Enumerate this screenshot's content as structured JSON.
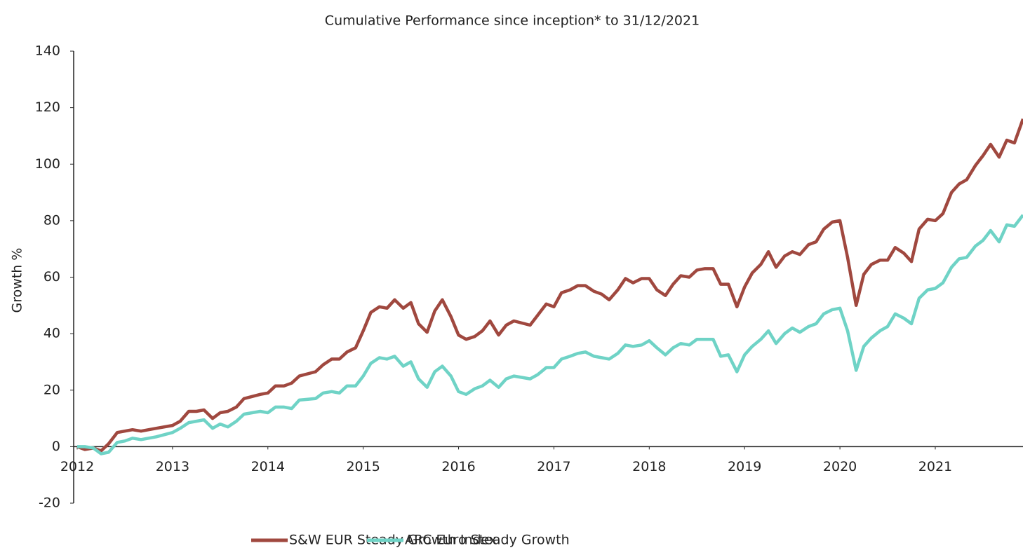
{
  "chart_data": {
    "type": "line",
    "title": "Cumulative Performance since inception* to 31/12/2021",
    "y_label": "Growth %",
    "x": [
      2012,
      2012.08,
      2012.17,
      2012.25,
      2012.33,
      2012.42,
      2012.5,
      2012.58,
      2012.67,
      2012.83,
      2013,
      2013.08,
      2013.17,
      2013.25,
      2013.33,
      2013.42,
      2013.5,
      2013.58,
      2013.67,
      2013.75,
      2013.92,
      2014,
      2014.08,
      2014.17,
      2014.25,
      2014.33,
      2014.5,
      2014.58,
      2014.67,
      2014.75,
      2014.83,
      2014.92,
      2015,
      2015.08,
      2015.17,
      2015.25,
      2015.33,
      2015.42,
      2015.5,
      2015.58,
      2015.67,
      2015.75,
      2015.83,
      2015.92,
      2016,
      2016.08,
      2016.17,
      2016.25,
      2016.33,
      2016.42,
      2016.5,
      2016.58,
      2016.75,
      2016.83,
      2016.92,
      2017,
      2017.08,
      2017.17,
      2017.25,
      2017.33,
      2017.42,
      2017.5,
      2017.58,
      2017.67,
      2017.75,
      2017.83,
      2017.92,
      2018,
      2018.08,
      2018.17,
      2018.25,
      2018.33,
      2018.42,
      2018.5,
      2018.58,
      2018.67,
      2018.75,
      2018.83,
      2018.92,
      2019,
      2019.08,
      2019.17,
      2019.25,
      2019.33,
      2019.42,
      2019.5,
      2019.58,
      2019.67,
      2019.75,
      2019.83,
      2019.92,
      2020,
      2020.08,
      2020.17,
      2020.25,
      2020.33,
      2020.42,
      2020.5,
      2020.58,
      2020.67,
      2020.75,
      2020.83,
      2020.92,
      2021,
      2021.08,
      2021.17,
      2021.25,
      2021.33,
      2021.42,
      2021.5,
      2021.58,
      2021.67,
      2021.75,
      2021.83,
      2021.92
    ],
    "series": [
      {
        "name": "S&W EUR Steady Growth Index",
        "color": "#a0483f",
        "values": [
          0,
          -1,
          -0.5,
          -1.5,
          1,
          5,
          5.5,
          6,
          5.5,
          6.5,
          7.5,
          9,
          12.5,
          12.5,
          13,
          10,
          12,
          12.5,
          14,
          17,
          18.5,
          19,
          21.5,
          21.5,
          22.5,
          25,
          26.5,
          29,
          31,
          31,
          33.5,
          35,
          41,
          47.5,
          49.5,
          49,
          52,
          49,
          51,
          43.5,
          40.5,
          48,
          52,
          46,
          39.5,
          38,
          39,
          41,
          44.5,
          39.5,
          43,
          44.5,
          43,
          46.5,
          50.5,
          49.5,
          54.5,
          55.5,
          57,
          57,
          55,
          54,
          52,
          55.5,
          59.5,
          58,
          59.5,
          59.5,
          55.5,
          53.5,
          57.5,
          60.5,
          60,
          62.5,
          63,
          63,
          57.5,
          57.5,
          49.5,
          56.5,
          61.5,
          64.5,
          69,
          63.5,
          67.5,
          69,
          68,
          71.5,
          72.5,
          77,
          79.5,
          80,
          67,
          50,
          61,
          64.5,
          66,
          66,
          70.5,
          68.5,
          65.5,
          77,
          80.5,
          80,
          82.5,
          90,
          93,
          94.5,
          99.5,
          103,
          107,
          102.5,
          108.5,
          107.5,
          116
        ]
      },
      {
        "name": "ARC Euro Steady Growth",
        "color": "#6fd3c6",
        "values": [
          0,
          0,
          -0.5,
          -2.5,
          -2,
          1.5,
          2,
          3,
          2.5,
          3.5,
          5,
          6.5,
          8.5,
          9,
          9.5,
          6.5,
          8,
          7,
          9,
          11.5,
          12.5,
          12,
          14,
          14,
          13.5,
          16.5,
          17,
          19,
          19.5,
          19,
          21.5,
          21.5,
          25,
          29.5,
          31.5,
          31,
          32,
          28.5,
          30,
          24,
          21,
          26.5,
          28.5,
          25,
          19.5,
          18.5,
          20.5,
          21.5,
          23.5,
          21,
          24,
          25,
          24,
          25.5,
          28,
          28,
          31,
          32,
          33,
          33.5,
          32,
          31.5,
          31,
          33,
          36,
          35.5,
          36,
          37.5,
          35,
          32.5,
          35,
          36.5,
          36,
          38,
          38,
          38,
          32,
          32.5,
          26.5,
          32.5,
          35.5,
          38,
          41,
          36.5,
          40,
          42,
          40.5,
          42.5,
          43.5,
          47,
          48.5,
          49,
          41,
          27,
          35.5,
          38.5,
          41,
          42.5,
          47,
          45.5,
          43.5,
          52.5,
          55.5,
          56,
          58,
          63.5,
          66.5,
          67,
          71,
          73,
          76.5,
          72.5,
          78.5,
          78,
          82
        ]
      }
    ],
    "xlim": [
      2012,
      2021.92
    ],
    "xticks": [
      2012,
      2013,
      2014,
      2015,
      2016,
      2017,
      2018,
      2019,
      2020,
      2021
    ],
    "ylim": [
      -20,
      140
    ],
    "yticks": [
      -20,
      0,
      20,
      40,
      60,
      80,
      100,
      120,
      140
    ],
    "legend": "bottom"
  }
}
